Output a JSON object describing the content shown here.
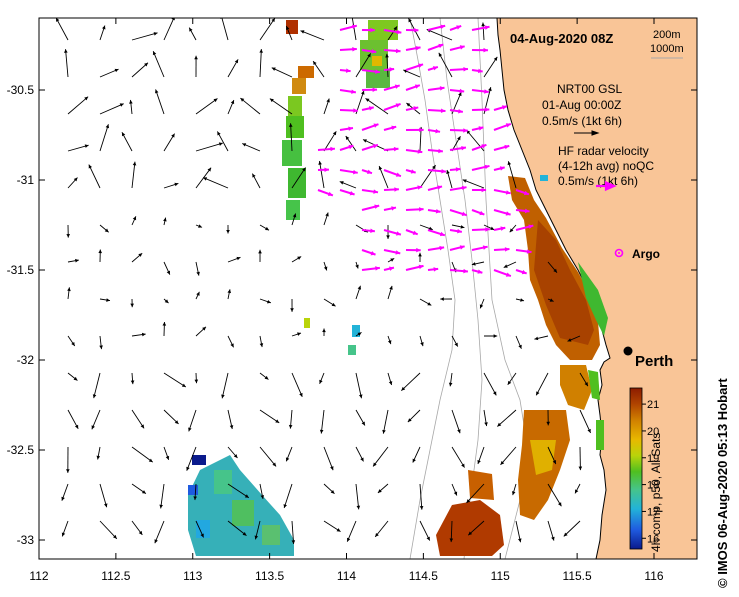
{
  "map": {
    "title": "04-Aug-2020 08Z",
    "depth_legend": {
      "line1": "200m",
      "line2": "1000m"
    },
    "lon_ticks": [
      "112",
      "112.5",
      "113",
      "113.5",
      "114",
      "114.5",
      "115",
      "115.5",
      "116"
    ],
    "lat_ticks": [
      "-30.5",
      "-31",
      "-31.5",
      "-32",
      "-32.5",
      "-33"
    ],
    "lon_range": [
      112,
      116.3
    ],
    "lat_range": [
      -30.1,
      -33.1
    ],
    "place_label": "Perth",
    "argo_label": "Argo",
    "credit": "© IMOS 06-Aug-2020 05:13 Hobart",
    "colors": {
      "land": "#f9c597",
      "model_arrow": "#000000",
      "radar_arrow": "#ff00ff",
      "argo": "#ff00ff",
      "isobath": "#a8a8a8"
    }
  },
  "legend": {
    "model_title": "NRT00 GSL",
    "model_time": "01-Aug 00:00Z",
    "model_scale": "0.5m/s (1kt 6h)",
    "radar_title": "HF radar velocity",
    "radar_sub": "(4-12h avg) noQC",
    "radar_scale": "0.5m/s (1kt 6h)"
  },
  "colorbar": {
    "label": "4h comp, p50, All Sats",
    "ticks": [
      "21",
      "20",
      "19",
      "18",
      "17",
      "16"
    ],
    "min": 15.6,
    "max": 21.6,
    "stops": [
      "#0a1a8c",
      "#1f5be0",
      "#22b3d8",
      "#46c48a",
      "#4fbf20",
      "#b9d40a",
      "#e8b800",
      "#d08000",
      "#b04400",
      "#8c1c00"
    ]
  }
}
